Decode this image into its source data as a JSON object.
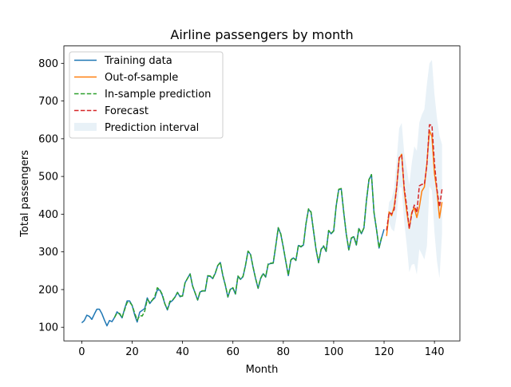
{
  "chart_data": {
    "type": "line",
    "title": "Airline passengers by month",
    "xlabel": "Month",
    "ylabel": "Total passengers",
    "xlim": [
      -7.1,
      150.1
    ],
    "ylim": [
      64,
      846
    ],
    "xticks": [
      0,
      20,
      40,
      60,
      80,
      100,
      120,
      140
    ],
    "yticks": [
      100,
      200,
      300,
      400,
      500,
      600,
      700,
      800
    ],
    "grid": false,
    "legend_position": "top-left",
    "colors": {
      "training": "#1f77b4",
      "out_of_sample": "#ff7f0e",
      "in_sample": "#2ca02c",
      "forecast": "#d62728",
      "interval": "#1f77b4"
    },
    "series": [
      {
        "name": "Training data",
        "style": "solid",
        "x_start": 0,
        "values": [
          112,
          118,
          132,
          129,
          121,
          135,
          148,
          148,
          136,
          119,
          104,
          118,
          115,
          126,
          141,
          135,
          125,
          149,
          170,
          170,
          158,
          133,
          114,
          140,
          145,
          150,
          178,
          163,
          172,
          178,
          199,
          199,
          184,
          162,
          146,
          166,
          171,
          180,
          193,
          181,
          183,
          218,
          230,
          242,
          209,
          191,
          172,
          194,
          196,
          196,
          236,
          235,
          229,
          243,
          264,
          272,
          237,
          211,
          180,
          201,
          204,
          188,
          235,
          227,
          234,
          264,
          302,
          293,
          259,
          229,
          203,
          229,
          242,
          233,
          267,
          269,
          270,
          315,
          364,
          347,
          312,
          274,
          237,
          278,
          284,
          277,
          317,
          313,
          318,
          374,
          413,
          405,
          355,
          306,
          271,
          306,
          315,
          301,
          356,
          348,
          355,
          422,
          465,
          467,
          404,
          347,
          305,
          336,
          340,
          318,
          362,
          348,
          363,
          435,
          491,
          505,
          404,
          359,
          310,
          337,
          360
        ]
      },
      {
        "name": "Out-of-sample",
        "style": "solid",
        "x_start": 121,
        "values": [
          342,
          406,
          396,
          420,
          472,
          548,
          559,
          463,
          407,
          362,
          405,
          417,
          391,
          419,
          461,
          472,
          535,
          622,
          606,
          508,
          461,
          390,
          432
        ]
      },
      {
        "name": "In-sample prediction",
        "style": "dashed",
        "x_start": 13,
        "values": [
          126,
          138,
          137,
          126,
          146,
          166,
          167,
          158,
          138,
          119,
          131,
          130,
          143,
          174,
          166,
          172,
          182,
          205,
          199,
          187,
          162,
          148,
          169,
          172,
          180,
          192,
          183,
          183,
          218,
          230,
          241,
          210,
          191,
          173,
          195,
          197,
          197,
          237,
          236,
          230,
          244,
          264,
          272,
          238,
          212,
          181,
          202,
          205,
          189,
          236,
          228,
          235,
          265,
          302,
          294,
          260,
          230,
          204,
          230,
          243,
          234,
          268,
          270,
          271,
          316,
          364,
          348,
          313,
          275,
          238,
          279,
          285,
          278,
          318,
          314,
          319,
          375,
          414,
          406,
          356,
          307,
          272,
          307,
          316,
          302,
          357,
          349,
          356,
          423,
          466,
          468,
          405,
          348,
          306,
          337,
          341,
          319,
          363,
          349,
          364,
          436,
          492,
          505,
          405,
          360,
          311,
          338
        ]
      },
      {
        "name": "Forecast",
        "style": "dashed",
        "x_start": 121,
        "values": [
          357,
          405,
          400,
          412,
          470,
          550,
          556,
          470,
          420,
          362,
          401,
          424,
          404,
          475,
          479,
          479,
          530,
          637,
          636,
          535,
          465,
          419,
          466
        ]
      }
    ],
    "interval": {
      "name": "Prediction interval",
      "x_start": 121,
      "upper": [
        370,
        432,
        440,
        470,
        545,
        628,
        642,
        562,
        522,
        478,
        536,
        580,
        568,
        643,
        664,
        678,
        745,
        800,
        809,
        718,
        655,
        608,
        585
      ],
      "lower": [
        344,
        378,
        360,
        354,
        395,
        472,
        470,
        378,
        318,
        246,
        266,
        268,
        240,
        307,
        294,
        280,
        315,
        474,
        463,
        352,
        275,
        230,
        347
      ]
    },
    "legend": [
      "Training data",
      "Out-of-sample",
      "In-sample prediction",
      "Forecast",
      "Prediction interval"
    ]
  }
}
